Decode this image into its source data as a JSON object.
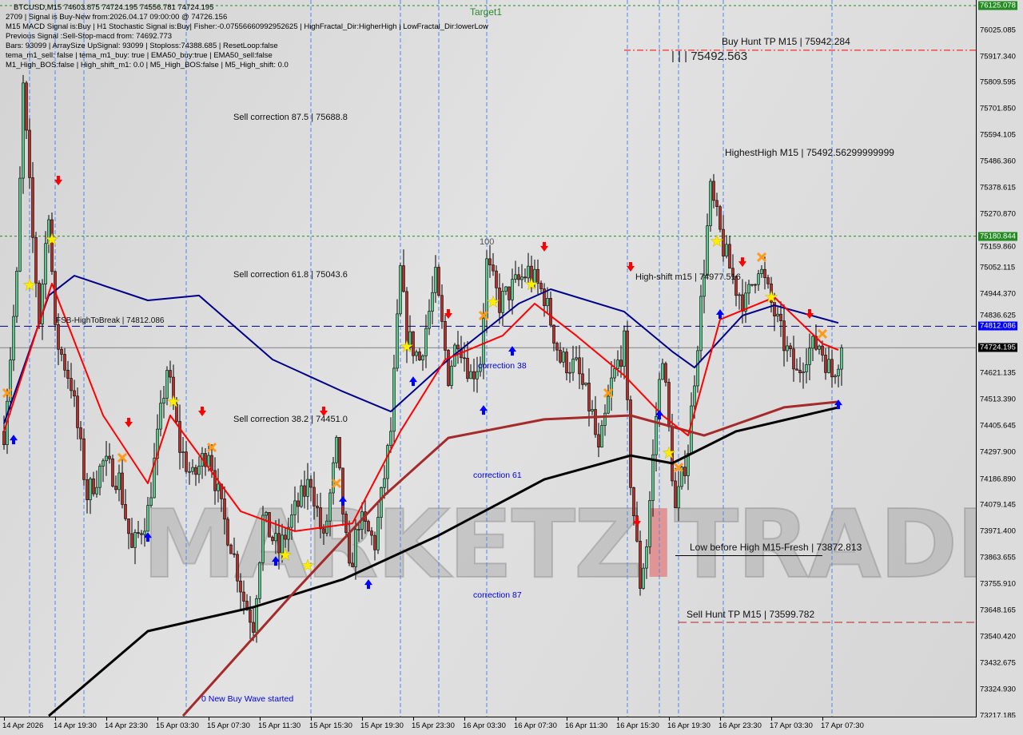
{
  "header": {
    "lines": [
      "BTCUSD,M15  74603.875 74724.195 74556.781 74724.195",
      "2709 | Signal is Buy-New from:2026.04.17 09:00:00 @ 74726.156",
      "M15 MACD Signal is:Buy | H1 Stochastic Signal is:Buy| Fisher:-0.07556660992952625 | HighFractal_Dir:HigherHigh | LowFractal_Dir:lowerLow",
      "Previous Signal :Sell-Stop-macd from: 74692.773",
      "Bars: 93099 | ArraySize UpSignal: 93099 | Stoploss:74388.685 | ResetLoop:false",
      "tema_m1_sell: false | tema_m1_buy: true | EMA50_buy:true | EMA50_sell:false",
      "M1_High_BOS:false | High_shift_m1: 0.0 | M5_High_BOS:false | M5_High_shift: 0.0"
    ]
  },
  "annotations": {
    "target1": "Target1",
    "sell_corr_875": "Sell correction 87.5 | 75688.8",
    "sell_corr_618": "Sell correction 61.8 | 75043.6",
    "sell_corr_382": "Sell correction 38.2 | 74451.0",
    "fsb": "FSB-HighToBreak | 74812.086",
    "level_100": "100",
    "corr_38": "correction 38",
    "corr_61": "correction 61",
    "corr_87": "correction 87",
    "new_wave": "0 New Buy Wave started",
    "high_shift": "High-shift m15 | 74977.516",
    "highest_high": "HighestHigh   M15 | 75492.56299999999",
    "bars_price": "| | | 75492.563",
    "buy_hunt": "Buy Hunt TP M15 | 75942.284",
    "low_before_high": "Low before High   M15-Fresh | 73872.813",
    "sell_hunt": "Sell Hunt TP M15 | 73599.782",
    "watermark": "MARKETZITRADE"
  },
  "colors": {
    "bull": "#5cc98c",
    "bear": "#b0302a",
    "ma_black": "#000000",
    "ma_brown": "#a52a2a",
    "ma_blue": "#00008b",
    "ma_red": "#ff0000",
    "target_green": "#228b22",
    "fsb_blue": "#0000ff"
  },
  "chart_data": {
    "type": "candlestick",
    "symbol": "BTCUSD",
    "timeframe": "M15",
    "ylim": [
      73217.185,
      76125.078
    ],
    "y_ticks": [
      "76025.085",
      "75917.340",
      "75809.595",
      "75701.850",
      "75594.105",
      "75486.360",
      "75378.615",
      "75270.870",
      "75159.860",
      "75052.115",
      "74944.370",
      "74836.625",
      "74621.135",
      "74513.390",
      "74405.645",
      "74297.900",
      "74186.890",
      "74079.145",
      "73971.400",
      "73863.655",
      "73755.910",
      "73648.165",
      "73540.420",
      "73432.675",
      "73324.930",
      "73217.185"
    ],
    "price_labels": [
      {
        "value": "76125.078",
        "color": "#228b22"
      },
      {
        "value": "75180.844",
        "color": "#228b22"
      },
      {
        "value": "74812.086",
        "color": "#0000ff"
      },
      {
        "value": "74724.195",
        "color": "#000000"
      }
    ],
    "x_ticks": [
      {
        "label": "14 Apr 2026",
        "t": "14 Apr 15:30"
      },
      {
        "label": "14 Apr 19:30",
        "t": "14 Apr 19:30"
      },
      {
        "label": "14 Apr 23:30",
        "t": "14 Apr 23:30"
      },
      {
        "label": "15 Apr 03:30",
        "t": "15 Apr 03:30"
      },
      {
        "label": "15 Apr 07:30",
        "t": "15 Apr 07:30"
      },
      {
        "label": "15 Apr 11:30",
        "t": "15 Apr 11:30"
      },
      {
        "label": "15 Apr 15:30",
        "t": "15 Apr 15:30"
      },
      {
        "label": "15 Apr 19:30",
        "t": "15 Apr 19:30"
      },
      {
        "label": "15 Apr 23:30",
        "t": "15 Apr 23:30"
      },
      {
        "label": "16 Apr 03:30",
        "t": "16 Apr 03:30"
      },
      {
        "label": "16 Apr 07:30",
        "t": "16 Apr 07:30"
      },
      {
        "label": "16 Apr 11:30",
        "t": "16 Apr 11:30"
      },
      {
        "label": "16 Apr 15:30",
        "t": "16 Apr 15:30"
      },
      {
        "label": "16 Apr 19:30",
        "t": "16 Apr 19:30"
      },
      {
        "label": "16 Apr 23:30",
        "t": "16 Apr 23:30"
      },
      {
        "label": "17 Apr 03:30",
        "t": "17 Apr 03:30"
      },
      {
        "label": "17 Apr 07:30",
        "t": "17 Apr 07:30"
      }
    ],
    "close_path": [
      [
        "14 Apr 15:30",
        74382
      ],
      [
        "14 Apr 16:30",
        75003
      ],
      [
        "14 Apr 17:00",
        75788
      ],
      [
        "14 Apr 17:45",
        75167
      ],
      [
        "14 Apr 18:15",
        74840
      ],
      [
        "14 Apr 19:00",
        75297
      ],
      [
        "14 Apr 19:30",
        74774
      ],
      [
        "14 Apr 20:45",
        74578
      ],
      [
        "14 Apr 22:00",
        74120
      ],
      [
        "14 Apr 23:15",
        74251
      ],
      [
        "15 Apr 00:30",
        74185
      ],
      [
        "15 Apr 01:30",
        73891
      ],
      [
        "15 Apr 02:45",
        74055
      ],
      [
        "15 Apr 03:45",
        74447
      ],
      [
        "15 Apr 04:15",
        74643
      ],
      [
        "15 Apr 05:15",
        74316
      ],
      [
        "15 Apr 06:15",
        74185
      ],
      [
        "15 Apr 07:30",
        74316
      ],
      [
        "15 Apr 08:30",
        74055
      ],
      [
        "15 Apr 09:15",
        73924
      ],
      [
        "15 Apr 10:15",
        73695
      ],
      [
        "15 Apr 11:00",
        73597
      ],
      [
        "15 Apr 11:45",
        74022
      ],
      [
        "15 Apr 13:00",
        73891
      ],
      [
        "15 Apr 14:15",
        74055
      ],
      [
        "15 Apr 15:30",
        74185
      ],
      [
        "15 Apr 16:30",
        73924
      ],
      [
        "15 Apr 17:30",
        74316
      ],
      [
        "15 Apr 18:30",
        73793
      ],
      [
        "15 Apr 19:15",
        74022
      ],
      [
        "15 Apr 20:30",
        73924
      ],
      [
        "15 Apr 21:45",
        74382
      ],
      [
        "15 Apr 22:30",
        75036
      ],
      [
        "15 Apr 23:00",
        74774
      ],
      [
        "16 Apr 00:00",
        74676
      ],
      [
        "16 Apr 01:15",
        75003
      ],
      [
        "16 Apr 02:15",
        74611
      ],
      [
        "16 Apr 03:00",
        74774
      ],
      [
        "16 Apr 04:00",
        74611
      ],
      [
        "16 Apr 04:45",
        74676
      ],
      [
        "16 Apr 05:15",
        75069
      ],
      [
        "16 Apr 06:15",
        74905
      ],
      [
        "16 Apr 07:15",
        74970
      ],
      [
        "16 Apr 08:30",
        75036
      ],
      [
        "16 Apr 09:45",
        74938
      ],
      [
        "16 Apr 11:00",
        74676
      ],
      [
        "16 Apr 12:15",
        74643
      ],
      [
        "16 Apr 13:30",
        74447
      ],
      [
        "16 Apr 14:00",
        74283
      ],
      [
        "16 Apr 15:00",
        74578
      ],
      [
        "16 Apr 16:00",
        74741
      ],
      [
        "16 Apr 16:30",
        74185
      ],
      [
        "16 Apr 17:15",
        73760
      ],
      [
        "16 Apr 17:45",
        73924
      ],
      [
        "16 Apr 18:30",
        74447
      ],
      [
        "16 Apr 19:00",
        74709
      ],
      [
        "16 Apr 20:00",
        74055
      ],
      [
        "16 Apr 21:00",
        74316
      ],
      [
        "16 Apr 22:00",
        74905
      ],
      [
        "16 Apr 22:45",
        75363
      ],
      [
        "16 Apr 23:45",
        75134
      ],
      [
        "17 Apr 00:45",
        74970
      ],
      [
        "17 Apr 01:30",
        74905
      ],
      [
        "17 Apr 02:30",
        75069
      ],
      [
        "17 Apr 03:30",
        74905
      ],
      [
        "17 Apr 04:30",
        74741
      ],
      [
        "17 Apr 05:30",
        74611
      ],
      [
        "17 Apr 06:15",
        74709
      ],
      [
        "17 Apr 07:15",
        74741
      ],
      [
        "17 Apr 08:15",
        74611
      ],
      [
        "17 Apr 09:00",
        74724.195
      ]
    ],
    "series": [
      {
        "key": "ma_black",
        "points": [
          [
            "14 Apr 19:00",
            73217
          ],
          [
            "15 Apr 02:45",
            73564
          ],
          [
            "15 Apr 11:00",
            73662
          ],
          [
            "15 Apr 18:00",
            73776
          ],
          [
            "16 Apr 01:30",
            73956
          ],
          [
            "16 Apr 09:45",
            74185
          ],
          [
            "16 Apr 16:30",
            74283
          ],
          [
            "16 Apr 19:45",
            74251
          ],
          [
            "17 Apr 00:45",
            74382
          ],
          [
            "17 Apr 08:45",
            74480
          ]
        ]
      },
      {
        "key": "ma_brown",
        "points": [
          [
            "15 Apr 05:30",
            73217
          ],
          [
            "15 Apr 14:15",
            73727
          ],
          [
            "15 Apr 21:15",
            74120
          ],
          [
            "16 Apr 02:15",
            74355
          ],
          [
            "16 Apr 09:45",
            74431
          ],
          [
            "16 Apr 16:30",
            74447
          ],
          [
            "16 Apr 22:15",
            74365
          ],
          [
            "17 Apr 04:30",
            74480
          ],
          [
            "17 Apr 08:45",
            74503
          ]
        ]
      },
      {
        "key": "ma_blue",
        "points": [
          [
            "14 Apr 15:30",
            74414
          ],
          [
            "14 Apr 19:00",
            74938
          ],
          [
            "14 Apr 21:00",
            75019
          ],
          [
            "15 Apr 02:45",
            74918
          ],
          [
            "15 Apr 06:45",
            74938
          ],
          [
            "15 Apr 12:30",
            74676
          ],
          [
            "15 Apr 18:00",
            74545
          ],
          [
            "15 Apr 21:45",
            74463
          ],
          [
            "16 Apr 02:15",
            74676
          ],
          [
            "16 Apr 07:45",
            74905
          ],
          [
            "16 Apr 10:15",
            74964
          ],
          [
            "16 Apr 16:00",
            74872
          ],
          [
            "16 Apr 19:45",
            74709
          ],
          [
            "16 Apr 21:30",
            74643
          ],
          [
            "17 Apr 01:15",
            74856
          ],
          [
            "17 Apr 03:45",
            74898
          ],
          [
            "17 Apr 08:45",
            74826
          ]
        ]
      },
      {
        "key": "ma_red",
        "points": [
          [
            "14 Apr 15:30",
            74382
          ],
          [
            "14 Apr 19:15",
            74987
          ],
          [
            "14 Apr 23:15",
            74447
          ],
          [
            "15 Apr 02:45",
            74169
          ],
          [
            "15 Apr 04:30",
            74447
          ],
          [
            "15 Apr 10:00",
            74055
          ],
          [
            "15 Apr 14:15",
            73973
          ],
          [
            "15 Apr 18:45",
            74005
          ],
          [
            "15 Apr 22:30",
            74382
          ],
          [
            "16 Apr 02:00",
            74676
          ],
          [
            "16 Apr 06:30",
            74774
          ],
          [
            "16 Apr 09:00",
            74905
          ],
          [
            "16 Apr 12:15",
            74774
          ],
          [
            "16 Apr 16:00",
            74611
          ],
          [
            "16 Apr 19:00",
            74447
          ],
          [
            "16 Apr 21:00",
            74365
          ],
          [
            "16 Apr 23:30",
            74840
          ],
          [
            "17 Apr 03:45",
            74931
          ],
          [
            "17 Apr 07:30",
            74741
          ],
          [
            "17 Apr 08:45",
            74715
          ]
        ]
      }
    ],
    "levels": [
      {
        "name": "target1",
        "value": 76125.078,
        "style": "dotted",
        "color": "#228b22"
      },
      {
        "name": "buy-hunt-tp",
        "value": 75942.284,
        "style": "dashdot",
        "color": "#ff0000",
        "from": "16 Apr 16:00"
      },
      {
        "name": "level-100",
        "value": 75180.844,
        "style": "dotted",
        "color": "#228b22"
      },
      {
        "name": "fsb-high-to-break",
        "value": 74812.086,
        "style": "dashed",
        "color": "#000080"
      },
      {
        "name": "current-price",
        "value": 74724.195,
        "style": "solid",
        "color": "#808080"
      },
      {
        "name": "low-before-high",
        "value": 73872.813,
        "style": "solid",
        "color": "#000000",
        "from": "16 Apr 20:00",
        "to": "17 Apr 07:30"
      },
      {
        "name": "sell-hunt-tp",
        "value": 73599.782,
        "style": "dashed",
        "color": "#b22222",
        "from": "16 Apr 20:15"
      }
    ],
    "signals": {
      "sell_arrows": [
        [
          "14 Apr 19:45",
          75402
        ],
        [
          "15 Apr 01:15",
          74411
        ],
        [
          "15 Apr 07:00",
          74457
        ],
        [
          "15 Apr 16:30",
          74457
        ],
        [
          "16 Apr 02:15",
          74856
        ],
        [
          "16 Apr 09:45",
          75131
        ],
        [
          "16 Apr 16:30",
          75049
        ],
        [
          "16 Apr 17:00",
          74005
        ],
        [
          "17 Apr 01:15",
          75068
        ],
        [
          "17 Apr 06:30",
          74856
        ]
      ],
      "buy_arrows": [
        [
          "14 Apr 16:15",
          74355
        ],
        [
          "15 Apr 02:45",
          73956
        ],
        [
          "15 Apr 12:45",
          73858
        ],
        [
          "15 Apr 18:00",
          74104
        ],
        [
          "15 Apr 20:00",
          73763
        ],
        [
          "15 Apr 23:30",
          74594
        ],
        [
          "16 Apr 05:00",
          74476
        ],
        [
          "16 Apr 07:15",
          74718
        ],
        [
          "16 Apr 18:45",
          74457
        ],
        [
          "16 Apr 23:30",
          74869
        ],
        [
          "17 Apr 08:45",
          74499
        ]
      ],
      "stars": [
        [
          "14 Apr 17:30",
          74980
        ],
        [
          "14 Apr 19:15",
          75167
        ],
        [
          "15 Apr 04:45",
          74503
        ],
        [
          "15 Apr 13:30",
          73875
        ],
        [
          "15 Apr 15:15",
          73832
        ],
        [
          "15 Apr 23:00",
          74728
        ],
        [
          "16 Apr 05:45",
          74911
        ],
        [
          "16 Apr 08:45",
          74983
        ],
        [
          "16 Apr 19:30",
          74293
        ],
        [
          "16 Apr 23:15",
          75160
        ],
        [
          "17 Apr 03:30",
          74931
        ]
      ],
      "crosses": [
        [
          "14 Apr 15:45",
          74539
        ],
        [
          "15 Apr 00:45",
          74274
        ],
        [
          "15 Apr 07:45",
          74316
        ],
        [
          "15 Apr 17:30",
          74169
        ],
        [
          "16 Apr 05:00",
          74856
        ],
        [
          "16 Apr 14:45",
          74539
        ],
        [
          "16 Apr 20:15",
          74234
        ],
        [
          "17 Apr 02:45",
          75095
        ],
        [
          "17 Apr 07:30",
          74781
        ]
      ]
    },
    "vertical_lines": [
      "14 Apr 17:30",
      "14 Apr 19:30",
      "14 Apr 21:45",
      "15 Apr 05:45",
      "15 Apr 15:30",
      "15 Apr 22:30",
      "16 Apr 01:30",
      "16 Apr 05:15",
      "16 Apr 16:15",
      "16 Apr 18:45",
      "16 Apr 20:15",
      "16 Apr 23:45",
      "17 Apr 08:15"
    ]
  }
}
